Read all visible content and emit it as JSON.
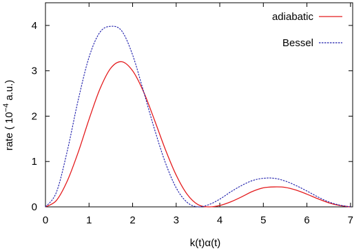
{
  "chart_data": {
    "type": "line",
    "xlabel": "k(t)α(t)",
    "ylabel": {
      "prefix": "rate ( 10",
      "exponent": "−4",
      "suffix": " a.u.)"
    },
    "xlim": [
      0,
      7.05
    ],
    "ylim": [
      0,
      4.5
    ],
    "x_ticks": [
      0,
      1,
      2,
      3,
      4,
      5,
      6,
      7
    ],
    "x_tick_labels": [
      "0",
      "1",
      "2",
      "3",
      "4",
      "5",
      "6",
      "7"
    ],
    "y_ticks": [
      0,
      1,
      2,
      3,
      4
    ],
    "y_tick_labels": [
      "0",
      "1",
      "2",
      "3",
      "4"
    ],
    "grid": false,
    "legend_position": "top-right",
    "series": [
      {
        "name": "adiabatic",
        "color": "#e41a1c",
        "dash": "solid",
        "x": [
          0,
          0.25,
          0.5,
          0.75,
          1.0,
          1.25,
          1.5,
          1.75,
          2.0,
          2.25,
          2.5,
          2.75,
          3.0,
          3.25,
          3.5,
          3.75,
          4.0,
          4.25,
          4.5,
          4.75,
          5.0,
          5.25,
          5.5,
          5.75,
          6.0,
          6.25,
          6.5,
          6.75,
          7.0
        ],
        "values": [
          0,
          0.14,
          0.57,
          1.2,
          1.93,
          2.6,
          3.06,
          3.2,
          3.0,
          2.54,
          1.92,
          1.27,
          0.7,
          0.28,
          0.05,
          0.0,
          0.03,
          0.11,
          0.22,
          0.34,
          0.42,
          0.44,
          0.43,
          0.37,
          0.28,
          0.18,
          0.09,
          0.03,
          0.0
        ]
      },
      {
        "name": "Bessel",
        "color": "#1a1aaa",
        "dash": "dashed",
        "x": [
          0,
          0.25,
          0.5,
          0.75,
          1.0,
          1.25,
          1.5,
          1.75,
          2.0,
          2.25,
          2.5,
          2.75,
          3.0,
          3.25,
          3.5,
          3.75,
          4.0,
          4.25,
          4.5,
          4.75,
          5.0,
          5.25,
          5.5,
          5.75,
          6.0,
          6.25,
          6.5,
          6.75,
          7.0
        ],
        "values": [
          0,
          0.32,
          1.23,
          2.35,
          3.3,
          3.85,
          3.98,
          3.88,
          3.35,
          2.55,
          1.72,
          0.98,
          0.42,
          0.1,
          0.0,
          0.05,
          0.17,
          0.33,
          0.47,
          0.58,
          0.63,
          0.63,
          0.57,
          0.47,
          0.35,
          0.22,
          0.11,
          0.04,
          0.0
        ]
      }
    ]
  }
}
